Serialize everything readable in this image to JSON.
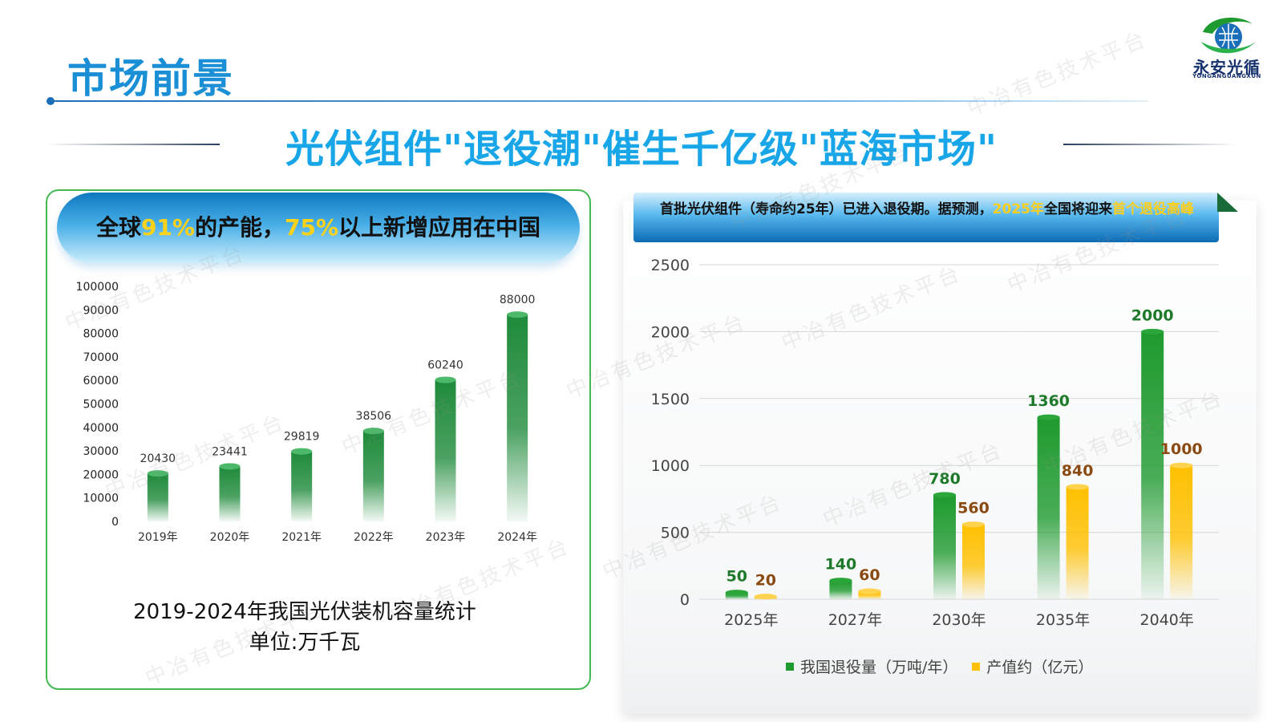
{
  "header": {
    "title": "市场前景",
    "headline": "光伏组件\"退役潮\"催生千亿级\"蓝海市场\"",
    "logo_name": "永安光循",
    "logo_sub": "YONGANGUANGXUN"
  },
  "left_panel": {
    "banner_pre": "全球",
    "banner_hl1": "91%",
    "banner_mid": "的产能，",
    "banner_hl2": "75%",
    "banner_post": "以上新增应用在中国",
    "chart_caption": "2019-2024年我国光伏装机容量统计",
    "chart_unit": "单位:万千瓦"
  },
  "right_panel": {
    "banner_pre": "首批光伏组件（寿命约25年）已进入退役期。据预测，",
    "banner_hl1": "2025年",
    "banner_mid": "全国将迎来",
    "banner_hl2": "首个退役高峰"
  },
  "watermark": "中冶有色技术平台",
  "colors": {
    "green_bar": "#1e9a2e",
    "yellow_bar": "#ffc000",
    "title_blue": "#1a8fd6",
    "accent_yellow": "#ffd21a"
  },
  "chart_data": [
    {
      "type": "bar",
      "categories": [
        "2019年",
        "2020年",
        "2021年",
        "2022年",
        "2023年",
        "2024年"
      ],
      "values": [
        20430,
        23441,
        29819,
        38506,
        60240,
        88000
      ],
      "yticks": [
        0,
        10000,
        20000,
        30000,
        40000,
        50000,
        60000,
        70000,
        80000,
        90000,
        100000
      ],
      "ylim": [
        0,
        100000
      ],
      "title": "2019-2024年我国光伏装机容量统计",
      "unit": "单位:万千瓦"
    },
    {
      "type": "bar",
      "categories": [
        "2025年",
        "2027年",
        "2030年",
        "2035年",
        "2040年"
      ],
      "series": [
        {
          "name": "我国退役量（万吨/年）",
          "values": [
            50,
            140,
            780,
            1360,
            2000
          ],
          "color": "#1e9a2e"
        },
        {
          "name": "产值约（亿元）",
          "values": [
            20,
            60,
            560,
            840,
            1000
          ],
          "color": "#ffc000"
        }
      ],
      "yticks": [
        0,
        500,
        1000,
        1500,
        2000,
        2500
      ],
      "ylim": [
        0,
        2500
      ],
      "legend": "bottom",
      "grid": true
    }
  ]
}
